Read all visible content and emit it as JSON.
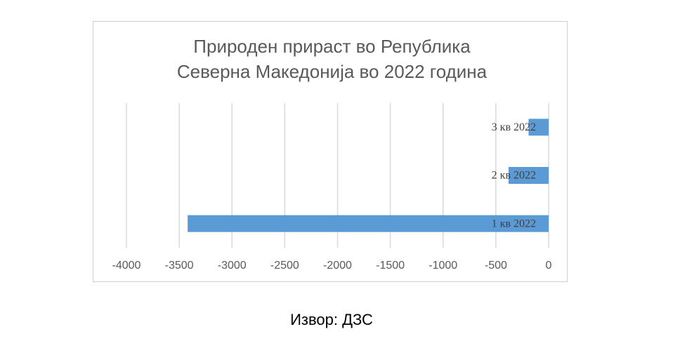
{
  "chart_data": {
    "type": "hbar",
    "title": "Природен прираст во Република Северна Македонија во 2022 година",
    "categories": [
      "1 кв 2022",
      "2 кв 2022",
      "3 кв 2022"
    ],
    "values": [
      -3420,
      -380,
      -190
    ],
    "color": "#5b9bd5",
    "xlim": [
      -4000,
      0
    ],
    "xticks": [
      -4000,
      -3500,
      -3000,
      -2500,
      -2000,
      -1500,
      -1000,
      -500,
      0
    ],
    "grid": true,
    "source": "Извор: ДЗС"
  }
}
